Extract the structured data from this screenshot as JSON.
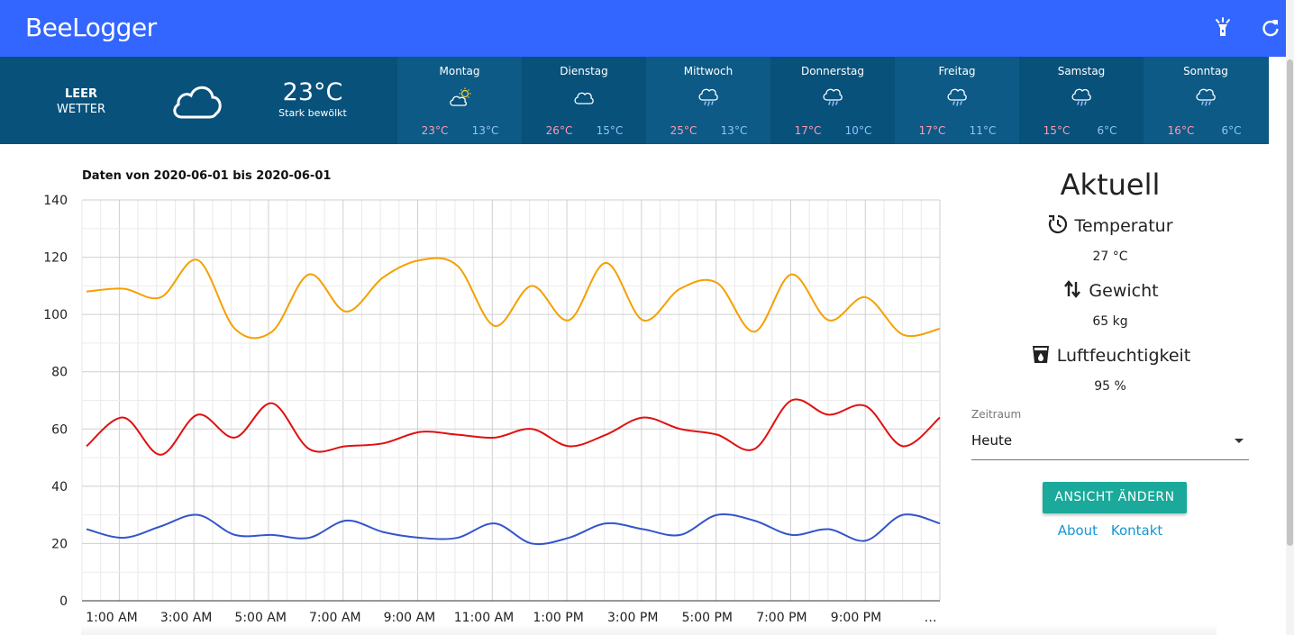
{
  "app": {
    "title": "BeeLogger",
    "actions": [
      "flashlight-icon",
      "refresh-icon"
    ],
    "accent": "#3366ff"
  },
  "weather": {
    "location": "LEER",
    "label": "WETTER",
    "current_temp": "23°C",
    "current_desc": "Stark bewölkt",
    "current_icon": "cloud-icon",
    "days": [
      {
        "name": "Montag",
        "icon": "partly-sunny-icon",
        "hi": "23°C",
        "lo": "13°C"
      },
      {
        "name": "Dienstag",
        "icon": "cloud-icon",
        "hi": "26°C",
        "lo": "15°C"
      },
      {
        "name": "Mittwoch",
        "icon": "rain-icon",
        "hi": "25°C",
        "lo": "13°C"
      },
      {
        "name": "Donnerstag",
        "icon": "rain-icon",
        "hi": "17°C",
        "lo": "10°C"
      },
      {
        "name": "Freitag",
        "icon": "rain-icon",
        "hi": "17°C",
        "lo": "11°C"
      },
      {
        "name": "Samstag",
        "icon": "rain-icon",
        "hi": "15°C",
        "lo": "6°C"
      },
      {
        "name": "Sonntag",
        "icon": "rain-icon",
        "hi": "16°C",
        "lo": "6°C"
      }
    ]
  },
  "chart_data": {
    "type": "line",
    "title": "Daten von 2020-06-01 bis 2020-06-01",
    "ylim": [
      0,
      140
    ],
    "yticks": [
      0,
      20,
      40,
      60,
      80,
      100,
      120,
      140
    ],
    "x_tick_labels": [
      "1:00 AM",
      "3:00 AM",
      "5:00 AM",
      "7:00 AM",
      "9:00 AM",
      "11:00 AM",
      "1:00 PM",
      "3:00 PM",
      "5:00 PM",
      "7:00 PM",
      "9:00 PM",
      "…"
    ],
    "x_range_hours": [
      0,
      23
    ],
    "grid": true,
    "series": [
      {
        "color": "#f5a000",
        "x": [
          0,
          1,
          2,
          3,
          4,
          5,
          6,
          7,
          8,
          9,
          10,
          11,
          12,
          13,
          14,
          15,
          16,
          17,
          18,
          19,
          20,
          21,
          22,
          23
        ],
        "values": [
          108,
          109,
          106,
          119,
          95,
          94,
          114,
          101,
          113,
          119,
          117,
          96,
          110,
          98,
          118,
          98,
          109,
          111,
          94,
          114,
          98,
          106,
          93,
          95
        ]
      },
      {
        "color": "#e01010",
        "x": [
          0,
          1,
          2,
          3,
          4,
          5,
          6,
          7,
          8,
          9,
          10,
          11,
          12,
          13,
          14,
          15,
          16,
          17,
          18,
          19,
          20,
          21,
          22,
          23
        ],
        "values": [
          54,
          64,
          51,
          65,
          57,
          69,
          53,
          54,
          55,
          59,
          58,
          57,
          60,
          54,
          58,
          64,
          60,
          58,
          53,
          70,
          65,
          68,
          54,
          64
        ]
      },
      {
        "color": "#3355cc",
        "x": [
          0,
          1,
          2,
          3,
          4,
          5,
          6,
          7,
          8,
          9,
          10,
          11,
          12,
          13,
          14,
          15,
          16,
          17,
          18,
          19,
          20,
          21,
          22,
          23
        ],
        "values": [
          25,
          22,
          26,
          30,
          23,
          23,
          22,
          28,
          24,
          22,
          22,
          27,
          20,
          22,
          27,
          25,
          23,
          30,
          28,
          23,
          25,
          21,
          30,
          27
        ]
      }
    ]
  },
  "sidebar": {
    "heading": "Aktuell",
    "metrics": [
      {
        "label": "Temperatur",
        "value": "27 °C",
        "icon": "thermometer-clock-icon"
      },
      {
        "label": "Gewicht",
        "value": "65 kg",
        "icon": "swap-vertical-icon"
      },
      {
        "label": "Luftfeuchtigkeit",
        "value": "95 %",
        "icon": "water-cup-icon"
      }
    ],
    "select_label": "Zeitraum",
    "select_value": "Heute",
    "button_label": "ANSICHT ÄNDERN",
    "links": [
      "About",
      "Kontakt"
    ]
  }
}
